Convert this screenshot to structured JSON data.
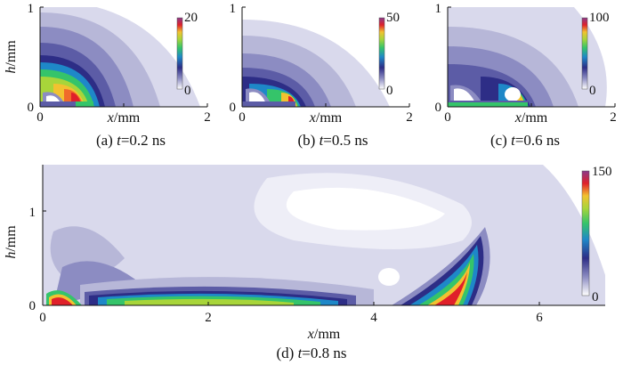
{
  "colors": {
    "c1": "#ffffff",
    "c2": "#d9d9ec",
    "c3": "#b7b7d8",
    "c4": "#8c8cc2",
    "c5": "#5c5ca6",
    "c6": "#2d2d86",
    "c7": "#1e88c8",
    "c8": "#35c46a",
    "c9": "#a8d53a",
    "c10": "#f2c230",
    "c11": "#f06a2a",
    "c12": "#e0202a",
    "c13": "#c02a80",
    "c14": "#8a3a8a"
  },
  "chart_data": [
    {
      "type": "heatmap",
      "id": "a",
      "caption_prefix": "(a)",
      "caption_var": "t",
      "caption_value": "=0.2",
      "caption_unit": "ns",
      "xlabel_var": "x",
      "xlabel_unit": "/mm",
      "ylabel_var": "h",
      "ylabel_unit": "/mm",
      "x_ticks": [
        "0",
        "1",
        "2"
      ],
      "y_ticks": [
        "0",
        "1"
      ],
      "xlim": [
        0,
        2
      ],
      "ylim": [
        0,
        1
      ],
      "colorbar": {
        "min": 0,
        "max": 20,
        "labels": [
          "20",
          "0"
        ]
      },
      "description": "Concentric contour shells centered near x=0.3 mm, h=0.1 mm; peak near the source"
    },
    {
      "type": "heatmap",
      "id": "b",
      "caption_prefix": "(b)",
      "caption_var": "t",
      "caption_value": "=0.5",
      "caption_unit": "ns",
      "xlabel_var": "x",
      "xlabel_unit": "/mm",
      "ylabel_var": "h",
      "ylabel_unit": "/mm",
      "x_ticks": [
        "0",
        "1",
        "2"
      ],
      "y_ticks": [
        "0",
        "1"
      ],
      "xlim": [
        0,
        2
      ],
      "ylim": [
        0,
        1
      ],
      "colorbar": {
        "min": 0,
        "max": 50,
        "labels": [
          "50",
          "0"
        ]
      }
    },
    {
      "type": "heatmap",
      "id": "c",
      "caption_prefix": "(c)",
      "caption_var": "t",
      "caption_value": "=0.6",
      "caption_unit": "ns",
      "xlabel_var": "x",
      "xlabel_unit": "/mm",
      "ylabel_var": "h",
      "ylabel_unit": "/mm",
      "x_ticks": [
        "0",
        "1",
        "2"
      ],
      "y_ticks": [
        "0",
        "1"
      ],
      "xlim": [
        0,
        2
      ],
      "ylim": [
        0,
        1
      ],
      "colorbar": {
        "min": 0,
        "max": 100,
        "labels": [
          "100",
          "0"
        ]
      }
    },
    {
      "type": "heatmap",
      "id": "d",
      "caption_prefix": "(d)",
      "caption_var": "t",
      "caption_value": "=0.8",
      "caption_unit": "ns",
      "xlabel_var": "x",
      "xlabel_unit": "/mm",
      "ylabel_var": "h",
      "ylabel_unit": "/mm",
      "x_ticks": [
        "0",
        "2",
        "4",
        "6"
      ],
      "y_ticks": [
        "0",
        "1"
      ],
      "xlim": [
        0,
        6.8
      ],
      "ylim": [
        0,
        1.5
      ],
      "colorbar": {
        "min": 0,
        "max": 150,
        "labels": [
          "150",
          "0"
        ]
      }
    }
  ]
}
